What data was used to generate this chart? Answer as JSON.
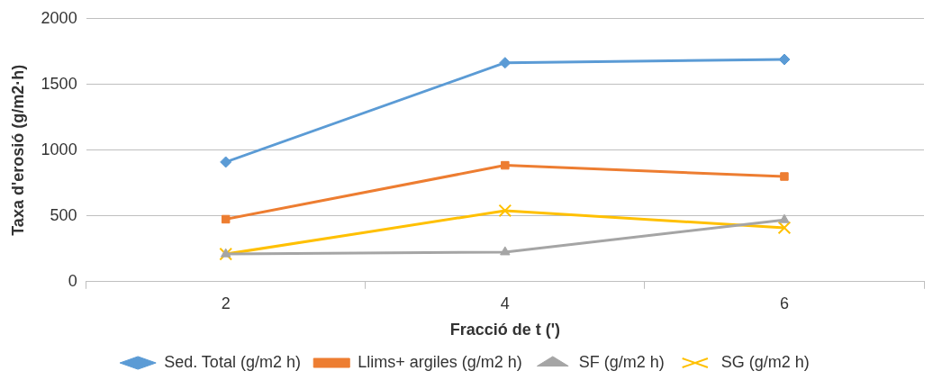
{
  "chart_data": {
    "type": "line",
    "xlabel": "Fracció de t (')",
    "ylabel": "Taxa d'erosió (g/m2·h)",
    "categories": [
      "2",
      "4",
      "6"
    ],
    "series": [
      {
        "name": "Sed. Total (g/m2 h)",
        "color": "#5b9bd5",
        "marker": "diamond",
        "values": [
          910,
          1665,
          1690
        ]
      },
      {
        "name": "Llims+ argiles (g/m2 h)",
        "color": "#ed7d31",
        "marker": "square",
        "values": [
          475,
          885,
          800
        ]
      },
      {
        "name": "SF (g/m2 h)",
        "color": "#a5a5a5",
        "marker": "triangle",
        "values": [
          210,
          225,
          470
        ]
      },
      {
        "name": "SG (g/m2 h)",
        "color": "#ffc000",
        "marker": "cross",
        "values": [
          210,
          540,
          410
        ]
      }
    ],
    "ylim": [
      0,
      2000
    ],
    "yticks": [
      0,
      500,
      1000,
      1500,
      2000
    ],
    "grid": "y",
    "legend": "bottom"
  }
}
